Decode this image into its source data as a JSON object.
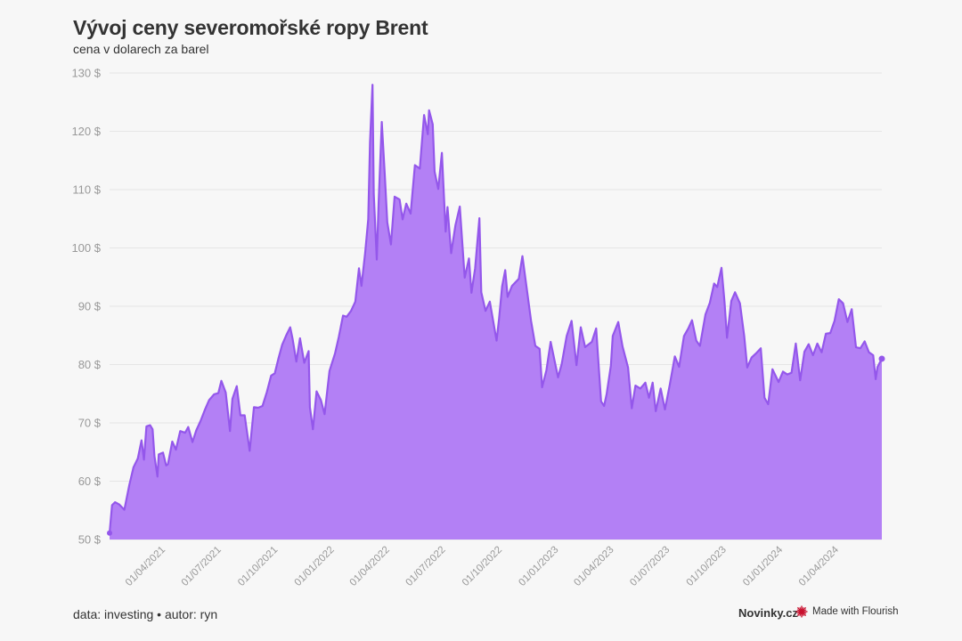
{
  "title": "Vývoj ceny severomořské ropy Brent",
  "subtitle": "cena v dolarech za barel",
  "footer": {
    "source": "data: investing • autor: ryn",
    "brand": "Novinky.cz",
    "made_with": "Made with Flourish"
  },
  "colors": {
    "area": "#b380f5",
    "line": "#9457eb",
    "brand_red": "#c8102e"
  },
  "chart_data": {
    "type": "area",
    "title": "Vývoj ceny severomořské ropy Brent",
    "subtitle": "cena v dolarech za barel",
    "xlabel": "",
    "ylabel": "",
    "ylim": [
      50,
      130
    ],
    "xlim": [
      "2021-01-04",
      "2024-06-14"
    ],
    "y_ticks": [
      50,
      60,
      70,
      80,
      90,
      100,
      110,
      120,
      130
    ],
    "y_tick_labels": [
      "50 $",
      "60 $",
      "70 $",
      "80 $",
      "90 $",
      "100 $",
      "110 $",
      "120 $",
      "130 $"
    ],
    "x_ticks": [
      "2021-04-01",
      "2021-07-01",
      "2021-10-01",
      "2022-01-01",
      "2022-04-01",
      "2022-07-01",
      "2022-10-01",
      "2023-01-01",
      "2023-04-01",
      "2023-07-01",
      "2023-10-01",
      "2024-01-01",
      "2024-04-01"
    ],
    "x_tick_labels": [
      "01/04/2021",
      "01/07/2021",
      "01/10/2021",
      "01/01/2022",
      "01/04/2022",
      "01/07/2022",
      "01/10/2022",
      "01/01/2023",
      "01/04/2023",
      "01/07/2023",
      "01/10/2023",
      "01/01/2024",
      "01/04/2024"
    ],
    "grid": true,
    "legend": "none",
    "points": [
      [
        "2021-01-04",
        51.1
      ],
      [
        "2021-01-08",
        55.9
      ],
      [
        "2021-01-13",
        56.4
      ],
      [
        "2021-01-20",
        56.0
      ],
      [
        "2021-01-28",
        55.1
      ],
      [
        "2021-02-05",
        59.3
      ],
      [
        "2021-02-12",
        62.4
      ],
      [
        "2021-02-19",
        63.9
      ],
      [
        "2021-02-25",
        67.0
      ],
      [
        "2021-03-01",
        63.7
      ],
      [
        "2021-03-05",
        69.4
      ],
      [
        "2021-03-11",
        69.6
      ],
      [
        "2021-03-15",
        68.9
      ],
      [
        "2021-03-18",
        64.3
      ],
      [
        "2021-03-23",
        60.8
      ],
      [
        "2021-03-25",
        64.6
      ],
      [
        "2021-04-01",
        64.9
      ],
      [
        "2021-04-06",
        62.7
      ],
      [
        "2021-04-09",
        62.9
      ],
      [
        "2021-04-16",
        66.8
      ],
      [
        "2021-04-22",
        65.4
      ],
      [
        "2021-04-29",
        68.6
      ],
      [
        "2021-05-07",
        68.3
      ],
      [
        "2021-05-12",
        69.3
      ],
      [
        "2021-05-19",
        66.7
      ],
      [
        "2021-05-25",
        68.7
      ],
      [
        "2021-06-01",
        70.3
      ],
      [
        "2021-06-08",
        72.2
      ],
      [
        "2021-06-15",
        73.9
      ],
      [
        "2021-06-23",
        74.9
      ],
      [
        "2021-06-30",
        75.1
      ],
      [
        "2021-07-05",
        77.2
      ],
      [
        "2021-07-12",
        75.2
      ],
      [
        "2021-07-19",
        68.6
      ],
      [
        "2021-07-23",
        74.1
      ],
      [
        "2021-07-30",
        76.3
      ],
      [
        "2021-08-05",
        71.3
      ],
      [
        "2021-08-12",
        71.3
      ],
      [
        "2021-08-20",
        65.2
      ],
      [
        "2021-08-27",
        72.7
      ],
      [
        "2021-09-03",
        72.6
      ],
      [
        "2021-09-10",
        72.9
      ],
      [
        "2021-09-17",
        75.3
      ],
      [
        "2021-09-24",
        78.1
      ],
      [
        "2021-09-30",
        78.5
      ],
      [
        "2021-10-06",
        81.1
      ],
      [
        "2021-10-12",
        83.4
      ],
      [
        "2021-10-19",
        85.1
      ],
      [
        "2021-10-25",
        86.4
      ],
      [
        "2021-10-29",
        84.4
      ],
      [
        "2021-11-04",
        80.5
      ],
      [
        "2021-11-10",
        84.5
      ],
      [
        "2021-11-17",
        80.3
      ],
      [
        "2021-11-24",
        82.3
      ],
      [
        "2021-11-26",
        72.7
      ],
      [
        "2021-12-01",
        68.9
      ],
      [
        "2021-12-07",
        75.4
      ],
      [
        "2021-12-14",
        73.9
      ],
      [
        "2021-12-20",
        71.5
      ],
      [
        "2021-12-28",
        78.9
      ],
      [
        "2022-01-06",
        81.9
      ],
      [
        "2022-01-12",
        84.7
      ],
      [
        "2022-01-19",
        88.4
      ],
      [
        "2022-01-25",
        88.2
      ],
      [
        "2022-02-01",
        89.2
      ],
      [
        "2022-02-08",
        90.8
      ],
      [
        "2022-02-14",
        96.5
      ],
      [
        "2022-02-18",
        93.5
      ],
      [
        "2022-02-24",
        99.1
      ],
      [
        "2022-03-01",
        104.9
      ],
      [
        "2022-03-04",
        118.1
      ],
      [
        "2022-03-08",
        127.98
      ],
      [
        "2022-03-10",
        109.3
      ],
      [
        "2022-03-15",
        98.0
      ],
      [
        "2022-03-18",
        107.9
      ],
      [
        "2022-03-23",
        121.6
      ],
      [
        "2022-03-28",
        112.5
      ],
      [
        "2022-04-01",
        104.4
      ],
      [
        "2022-04-07",
        100.6
      ],
      [
        "2022-04-13",
        108.8
      ],
      [
        "2022-04-21",
        108.3
      ],
      [
        "2022-04-26",
        104.9
      ],
      [
        "2022-05-02",
        107.6
      ],
      [
        "2022-05-09",
        105.9
      ],
      [
        "2022-05-16",
        114.2
      ],
      [
        "2022-05-24",
        113.6
      ],
      [
        "2022-05-31",
        122.8
      ],
      [
        "2022-06-06",
        119.5
      ],
      [
        "2022-06-08",
        123.6
      ],
      [
        "2022-06-14",
        121.2
      ],
      [
        "2022-06-17",
        113.1
      ],
      [
        "2022-06-23",
        110.1
      ],
      [
        "2022-06-29",
        116.3
      ],
      [
        "2022-07-05",
        102.8
      ],
      [
        "2022-07-08",
        107.0
      ],
      [
        "2022-07-14",
        99.1
      ],
      [
        "2022-07-21",
        103.9
      ],
      [
        "2022-07-28",
        107.1
      ],
      [
        "2022-08-05",
        94.9
      ],
      [
        "2022-08-12",
        98.2
      ],
      [
        "2022-08-16",
        92.3
      ],
      [
        "2022-08-22",
        96.5
      ],
      [
        "2022-08-29",
        105.1
      ],
      [
        "2022-09-01",
        92.4
      ],
      [
        "2022-09-08",
        89.2
      ],
      [
        "2022-09-15",
        90.8
      ],
      [
        "2022-09-26",
        84.1
      ],
      [
        "2022-09-30",
        87.9
      ],
      [
        "2022-10-05",
        93.4
      ],
      [
        "2022-10-10",
        96.2
      ],
      [
        "2022-10-14",
        91.6
      ],
      [
        "2022-10-21",
        93.5
      ],
      [
        "2022-11-01",
        94.7
      ],
      [
        "2022-11-07",
        98.6
      ],
      [
        "2022-11-14",
        93.1
      ],
      [
        "2022-11-21",
        87.5
      ],
      [
        "2022-11-28",
        83.2
      ],
      [
        "2022-12-05",
        82.7
      ],
      [
        "2022-12-09",
        76.1
      ],
      [
        "2022-12-16",
        79.0
      ],
      [
        "2022-12-23",
        83.9
      ],
      [
        "2023-01-04",
        77.8
      ],
      [
        "2023-01-10",
        80.1
      ],
      [
        "2023-01-18",
        84.9
      ],
      [
        "2023-01-26",
        87.5
      ],
      [
        "2023-02-03",
        79.9
      ],
      [
        "2023-02-10",
        86.4
      ],
      [
        "2023-02-17",
        83.0
      ],
      [
        "2023-02-28",
        83.9
      ],
      [
        "2023-03-07",
        86.2
      ],
      [
        "2023-03-15",
        73.7
      ],
      [
        "2023-03-20",
        72.9
      ],
      [
        "2023-03-24",
        74.9
      ],
      [
        "2023-03-31",
        79.8
      ],
      [
        "2023-04-03",
        84.9
      ],
      [
        "2023-04-12",
        87.3
      ],
      [
        "2023-04-19",
        83.1
      ],
      [
        "2023-04-28",
        79.5
      ],
      [
        "2023-05-04",
        72.5
      ],
      [
        "2023-05-10",
        76.4
      ],
      [
        "2023-05-18",
        75.9
      ],
      [
        "2023-05-26",
        76.9
      ],
      [
        "2023-06-01",
        74.3
      ],
      [
        "2023-06-07",
        76.9
      ],
      [
        "2023-06-12",
        72.0
      ],
      [
        "2023-06-20",
        75.9
      ],
      [
        "2023-06-27",
        72.3
      ],
      [
        "2023-07-05",
        76.6
      ],
      [
        "2023-07-13",
        81.4
      ],
      [
        "2023-07-20",
        79.6
      ],
      [
        "2023-07-28",
        84.9
      ],
      [
        "2023-08-04",
        86.2
      ],
      [
        "2023-08-10",
        87.6
      ],
      [
        "2023-08-17",
        84.1
      ],
      [
        "2023-08-23",
        83.2
      ],
      [
        "2023-09-01",
        88.6
      ],
      [
        "2023-09-08",
        90.6
      ],
      [
        "2023-09-15",
        93.9
      ],
      [
        "2023-09-20",
        93.3
      ],
      [
        "2023-09-27",
        96.6
      ],
      [
        "2023-10-02",
        90.7
      ],
      [
        "2023-10-06",
        84.6
      ],
      [
        "2023-10-13",
        90.9
      ],
      [
        "2023-10-19",
        92.4
      ],
      [
        "2023-10-27",
        90.5
      ],
      [
        "2023-11-03",
        84.9
      ],
      [
        "2023-11-08",
        79.5
      ],
      [
        "2023-11-15",
        81.2
      ],
      [
        "2023-11-22",
        81.9
      ],
      [
        "2023-11-30",
        82.8
      ],
      [
        "2023-12-06",
        74.3
      ],
      [
        "2023-12-12",
        73.2
      ],
      [
        "2023-12-19",
        79.2
      ],
      [
        "2023-12-29",
        77.0
      ],
      [
        "2024-01-05",
        78.8
      ],
      [
        "2024-01-12",
        78.3
      ],
      [
        "2024-01-19",
        78.6
      ],
      [
        "2024-01-26",
        83.6
      ],
      [
        "2024-02-02",
        77.3
      ],
      [
        "2024-02-09",
        82.2
      ],
      [
        "2024-02-16",
        83.5
      ],
      [
        "2024-02-23",
        81.6
      ],
      [
        "2024-03-01",
        83.6
      ],
      [
        "2024-03-08",
        82.1
      ],
      [
        "2024-03-15",
        85.3
      ],
      [
        "2024-03-22",
        85.4
      ],
      [
        "2024-03-29",
        87.5
      ],
      [
        "2024-04-05",
        91.2
      ],
      [
        "2024-04-12",
        90.5
      ],
      [
        "2024-04-19",
        87.3
      ],
      [
        "2024-04-26",
        89.5
      ],
      [
        "2024-05-03",
        82.96
      ],
      [
        "2024-05-10",
        82.8
      ],
      [
        "2024-05-17",
        83.98
      ],
      [
        "2024-05-24",
        82.1
      ],
      [
        "2024-05-31",
        81.6
      ],
      [
        "2024-06-04",
        77.5
      ],
      [
        "2024-06-07",
        79.6
      ],
      [
        "2024-06-14",
        81.0
      ]
    ]
  }
}
